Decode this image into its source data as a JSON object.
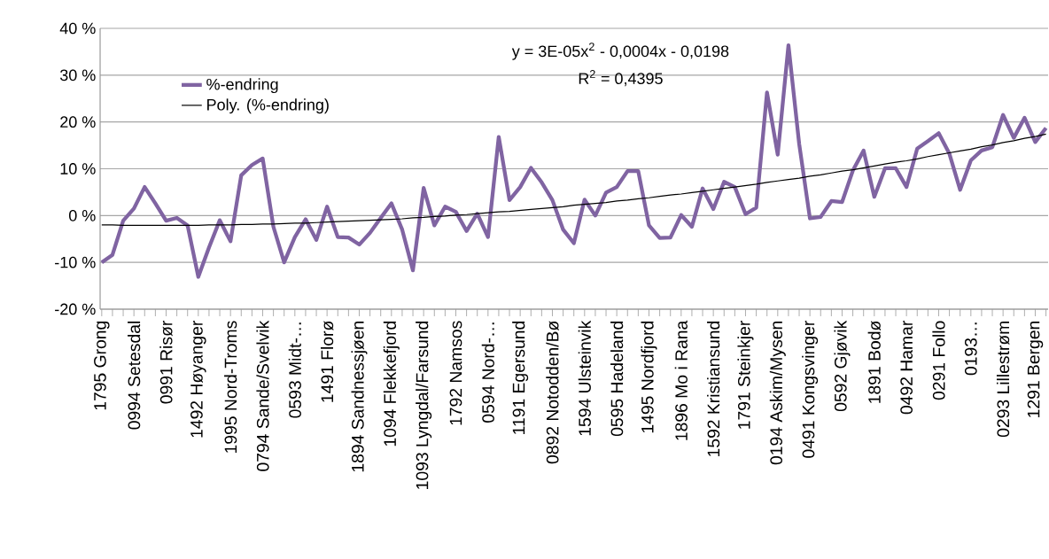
{
  "chart_data": {
    "type": "line",
    "categories": [
      "1795 Grong",
      null,
      null,
      "0994 Setesdal",
      null,
      null,
      "0991 Risør",
      null,
      null,
      "1492 Høyanger",
      null,
      null,
      "1995 Nord-Troms",
      null,
      null,
      "0794 Sande/Svelvik",
      null,
      null,
      "0593 Midt-…",
      null,
      null,
      "1491 Florø",
      null,
      null,
      "1894 Sandnessjøen",
      null,
      null,
      "1094 Flekkefjord",
      null,
      null,
      "1093 Lyngdal/Farsund",
      null,
      null,
      "1792 Namsos",
      null,
      null,
      "0594 Nord-…",
      null,
      null,
      "1191 Egersund",
      null,
      null,
      "0892 Notodden/Bø",
      null,
      null,
      "1594 Ulsteinvik",
      null,
      null,
      "0595 Hadeland",
      null,
      null,
      "1495 Nordfjord",
      null,
      null,
      "1896 Mo i Rana",
      null,
      null,
      "1592 Kristiansund",
      null,
      null,
      "1791 Steinkjer",
      null,
      null,
      "0194 Askim/Mysen",
      null,
      null,
      "0491 Kongsvinger",
      null,
      null,
      "0592 Gjøvik",
      null,
      null,
      "1891 Bodø",
      null,
      null,
      "0492 Hamar",
      null,
      null,
      "0291 Follo",
      null,
      null,
      "0193…",
      null,
      null,
      "0293 Lillestrøm",
      null,
      null,
      "1291 Bergen",
      null
    ],
    "series": [
      {
        "name": "%-endring",
        "color": "#8064a2",
        "values": [
          -10,
          -8.4,
          -1.1,
          1.5,
          6.1,
          2.6,
          -1.1,
          -0.5,
          -2.1,
          -13.1,
          -6.8,
          -1.0,
          -5.5,
          8.6,
          10.8,
          12.2,
          -2.4,
          -10.0,
          -4.6,
          -0.8,
          -5.2,
          1.9,
          -4.6,
          -4.7,
          -6.2,
          -3.7,
          -0.5,
          2.6,
          -3.0,
          -11.7,
          5.9,
          -2.1,
          1.9,
          0.8,
          -3.3,
          0.4,
          -4.6,
          16.8,
          3.3,
          6.1,
          10.2,
          7.1,
          3.3,
          -3.0,
          -5.9,
          3.4,
          0,
          4.9,
          6.1,
          9.5,
          9.5,
          -2.1,
          -4.8,
          -4.7,
          0.1,
          -2.4,
          5.8,
          1.4,
          7.2,
          6.1,
          0.3,
          1.7,
          26.3,
          13.0,
          36.4,
          15.3,
          -0.6,
          -0.3,
          3.1,
          2.9,
          9.6,
          13.9,
          4.0,
          10.1,
          10.1,
          6.1,
          14.3,
          15.9,
          17.6,
          13.2,
          5.5,
          11.8,
          13.9,
          14.6,
          21.5,
          16.6,
          20.9,
          15.7,
          18.7
        ]
      },
      {
        "name": "Poly. (%-endring)",
        "color": "#000000",
        "values": [
          -2.0,
          -2.0,
          -2.1,
          -2.1,
          -2.1,
          -2.1,
          -2.1,
          -2.1,
          -2.1,
          -2.1,
          -2.0,
          -2.0,
          -2.0,
          -1.9,
          -1.9,
          -1.8,
          -1.8,
          -1.7,
          -1.6,
          -1.6,
          -1.5,
          -1.4,
          -1.3,
          -1.2,
          -1.1,
          -1.0,
          -0.9,
          -0.8,
          -0.7,
          -0.5,
          -0.4,
          -0.2,
          -0.1,
          0.1,
          0.2,
          0.4,
          0.6,
          0.8,
          0.9,
          1.1,
          1.3,
          1.5,
          1.7,
          1.9,
          2.2,
          2.4,
          2.6,
          2.8,
          3.1,
          3.3,
          3.6,
          3.8,
          4.1,
          4.4,
          4.6,
          4.9,
          5.2,
          5.5,
          5.8,
          6.1,
          6.4,
          6.7,
          7.1,
          7.4,
          7.7,
          8.0,
          8.4,
          8.7,
          9.1,
          9.5,
          9.8,
          10.2,
          10.6,
          11.0,
          11.4,
          11.7,
          12.1,
          12.6,
          13.0,
          13.4,
          13.8,
          14.2,
          14.7,
          15.1,
          15.6,
          16.0,
          16.5,
          16.9,
          17.4
        ]
      }
    ],
    "ylim": [
      -20,
      40
    ],
    "yticks": [
      {
        "value": -20,
        "label": "-20 %"
      },
      {
        "value": -10,
        "label": "-10 %"
      },
      {
        "value": 0,
        "label": "0 %"
      },
      {
        "value": 10,
        "label": "10 %"
      },
      {
        "value": 20,
        "label": "20 %"
      },
      {
        "value": 30,
        "label": "30 %"
      },
      {
        "value": 40,
        "label": "40 %"
      }
    ],
    "annotations": [
      "y = 3E-05x$^{2}$ - 0,0004x - 0,0198",
      "R$^{2}$ = 0,4395"
    ],
    "grid": "y",
    "legend": "top left",
    "marker": "none",
    "line_style": "solid"
  }
}
